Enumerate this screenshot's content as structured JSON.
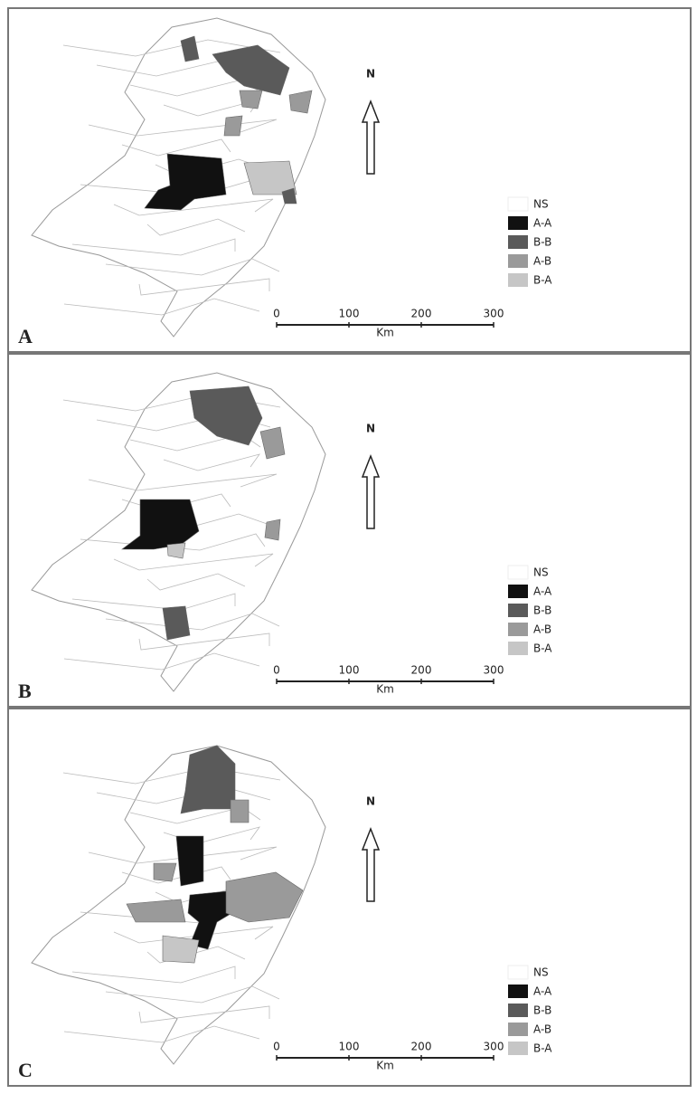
{
  "panels": [
    {
      "label": "A",
      "north": "N",
      "legend": [
        {
          "label": "NS",
          "color": "#ffffff"
        },
        {
          "label": "A-A",
          "color": "#111111"
        },
        {
          "label": "B-B",
          "color": "#5a5a5a"
        },
        {
          "label": "A-B",
          "color": "#9a9a9a"
        },
        {
          "label": "B-A",
          "color": "#c6c6c6"
        }
      ],
      "scale": {
        "ticks": [
          0,
          100,
          200,
          300
        ],
        "unit": "Km"
      }
    },
    {
      "label": "B",
      "north": "N",
      "legend": [
        {
          "label": "NS",
          "color": "#ffffff"
        },
        {
          "label": "A-A",
          "color": "#111111"
        },
        {
          "label": "B-B",
          "color": "#5a5a5a"
        },
        {
          "label": "A-B",
          "color": "#9a9a9a"
        },
        {
          "label": "B-A",
          "color": "#c6c6c6"
        }
      ],
      "scale": {
        "ticks": [
          0,
          100,
          200,
          300
        ],
        "unit": "Km"
      }
    },
    {
      "label": "C",
      "north": "N",
      "legend": [
        {
          "label": "NS",
          "color": "#ffffff"
        },
        {
          "label": "A-A",
          "color": "#111111"
        },
        {
          "label": "B-B",
          "color": "#5a5a5a"
        },
        {
          "label": "A-B",
          "color": "#9a9a9a"
        },
        {
          "label": "B-A",
          "color": "#c6c6c6"
        }
      ],
      "scale": {
        "ticks": [
          0,
          100,
          200,
          300
        ],
        "unit": "Km"
      }
    }
  ]
}
